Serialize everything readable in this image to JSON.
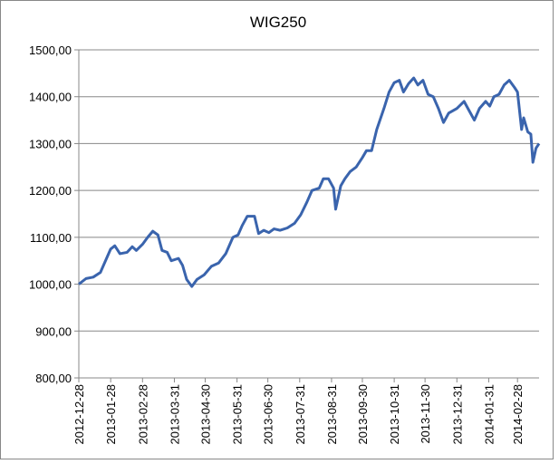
{
  "chart_data": {
    "type": "line",
    "title": "WIG250",
    "x": [
      "2012-12-28",
      "2013-01-04",
      "2013-01-11",
      "2013-01-18",
      "2013-01-25",
      "2013-01-28",
      "2013-02-01",
      "2013-02-06",
      "2013-02-13",
      "2013-02-18",
      "2013-02-22",
      "2013-02-28",
      "2013-03-05",
      "2013-03-10",
      "2013-03-15",
      "2013-03-19",
      "2013-03-24",
      "2013-03-28",
      "2013-04-04",
      "2013-04-08",
      "2013-04-12",
      "2013-04-17",
      "2013-04-22",
      "2013-04-29",
      "2013-05-06",
      "2013-05-13",
      "2013-05-20",
      "2013-05-27",
      "2013-06-01",
      "2013-06-05",
      "2013-06-10",
      "2013-06-17",
      "2013-06-21",
      "2013-06-26",
      "2013-07-01",
      "2013-07-06",
      "2013-07-12",
      "2013-07-19",
      "2013-07-26",
      "2013-08-01",
      "2013-08-07",
      "2013-08-12",
      "2013-08-19",
      "2013-08-23",
      "2013-08-28",
      "2013-09-02",
      "2013-09-04",
      "2013-09-09",
      "2013-09-13",
      "2013-09-18",
      "2013-09-24",
      "2013-09-30",
      "2013-10-04",
      "2013-10-09",
      "2013-10-14",
      "2013-10-21",
      "2013-10-26",
      "2013-10-31",
      "2013-11-05",
      "2013-11-09",
      "2013-11-14",
      "2013-11-19",
      "2013-11-23",
      "2013-11-28",
      "2013-12-03",
      "2013-12-08",
      "2013-12-13",
      "2013-12-18",
      "2013-12-23",
      "2013-12-31",
      "2014-01-07",
      "2014-01-12",
      "2014-01-17",
      "2014-01-22",
      "2014-01-28",
      "2014-02-01",
      "2014-02-05",
      "2014-02-10",
      "2014-02-15",
      "2014-02-20",
      "2014-02-25",
      "2014-02-28",
      "2014-03-04",
      "2014-03-06",
      "2014-03-10",
      "2014-03-13",
      "2014-03-15",
      "2014-03-18",
      "2014-03-21"
    ],
    "series": [
      {
        "name": "WIG250",
        "color": "#3a64ad",
        "values": [
          1000,
          1012,
          1015,
          1025,
          1060,
          1075,
          1082,
          1065,
          1068,
          1080,
          1072,
          1085,
          1100,
          1113,
          1105,
          1072,
          1068,
          1050,
          1055,
          1040,
          1010,
          995,
          1010,
          1020,
          1038,
          1045,
          1065,
          1100,
          1105,
          1125,
          1145,
          1145,
          1108,
          1115,
          1110,
          1118,
          1115,
          1120,
          1130,
          1148,
          1175,
          1200,
          1205,
          1225,
          1225,
          1205,
          1160,
          1210,
          1225,
          1240,
          1250,
          1270,
          1285,
          1285,
          1330,
          1375,
          1410,
          1430,
          1435,
          1410,
          1428,
          1440,
          1425,
          1435,
          1405,
          1400,
          1375,
          1345,
          1365,
          1375,
          1390,
          1370,
          1350,
          1375,
          1390,
          1380,
          1400,
          1405,
          1425,
          1435,
          1420,
          1410,
          1330,
          1355,
          1325,
          1320,
          1260,
          1290,
          1300
        ]
      }
    ],
    "xlim": [
      "2012-12-28",
      "2014-03-21"
    ],
    "xticks": [
      "2012-12-28",
      "2013-01-28",
      "2013-02-28",
      "2013-03-31",
      "2013-04-30",
      "2013-05-31",
      "2013-06-30",
      "2013-07-31",
      "2013-08-31",
      "2013-09-30",
      "2013-10-31",
      "2013-11-30",
      "2013-12-31",
      "2014-01-31",
      "2014-02-28"
    ],
    "ylim": [
      800,
      1500
    ],
    "yticks": [
      {
        "value": 800,
        "label": "800,00"
      },
      {
        "value": 900,
        "label": "900,00"
      },
      {
        "value": 1000,
        "label": "1000,00"
      },
      {
        "value": 1100,
        "label": "1100,00"
      },
      {
        "value": 1200,
        "label": "1200,00"
      },
      {
        "value": 1300,
        "label": "1300,00"
      },
      {
        "value": 1400,
        "label": "1400,00"
      },
      {
        "value": 1500,
        "label": "1500,00"
      }
    ],
    "grid": true
  }
}
